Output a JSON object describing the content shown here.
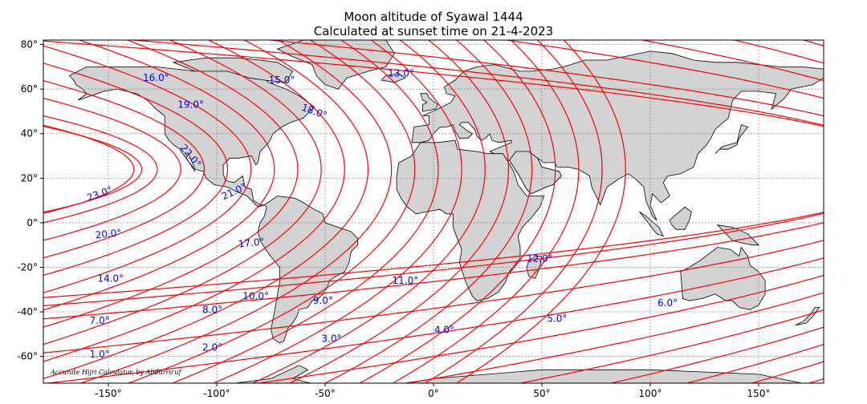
{
  "title": "Moon altitude of Syawal 1444",
  "subtitle": "Calculated at sunset time on 21-4-2023",
  "credit": "Accurate Hijri Calculator, by Abdurro'uf",
  "colors": {
    "contour": "#ff0000",
    "label": "#0000ff",
    "land": "#d3d3d3",
    "grid": "#808080"
  },
  "chart_data": {
    "type": "contour-map",
    "projection": "PlateCarree",
    "xlim": [
      -180,
      180
    ],
    "ylim": [
      -72,
      82
    ],
    "grid": true,
    "xticks": [
      {
        "value": -150,
        "label": "-150°"
      },
      {
        "value": -100,
        "label": "-100°"
      },
      {
        "value": -50,
        "label": "-50°"
      },
      {
        "value": 0,
        "label": "0°"
      },
      {
        "value": 50,
        "label": "50°"
      },
      {
        "value": 100,
        "label": "100°"
      },
      {
        "value": 150,
        "label": "150°"
      }
    ],
    "yticks": [
      {
        "value": 80,
        "label": "80°"
      },
      {
        "value": 60,
        "label": "60°"
      },
      {
        "value": 40,
        "label": "40°"
      },
      {
        "value": 20,
        "label": "20°"
      },
      {
        "value": 0,
        "label": "0°"
      },
      {
        "value": -20,
        "label": "-20°"
      },
      {
        "value": -40,
        "label": "-40°"
      },
      {
        "value": -60,
        "label": "-60°"
      }
    ],
    "contour_center": {
      "lon": -140,
      "lat": 24
    },
    "contour_levels": [
      {
        "level": 1,
        "r": 127
      },
      {
        "level": 2,
        "r": 121
      },
      {
        "level": 3,
        "r": 115
      },
      {
        "level": 4,
        "r": 109
      },
      {
        "level": 5,
        "r": 103
      },
      {
        "level": 6,
        "r": 97
      },
      {
        "level": 7,
        "r": 91
      },
      {
        "level": 8,
        "r": 85
      },
      {
        "level": 9,
        "r": 79
      },
      {
        "level": 10,
        "r": 73
      },
      {
        "level": 11,
        "r": 67
      },
      {
        "level": 12,
        "r": 61
      },
      {
        "level": 13,
        "r": 55
      },
      {
        "level": 14,
        "r": 49
      },
      {
        "level": 15,
        "r": 43
      },
      {
        "level": 16,
        "r": 37
      },
      {
        "level": 17,
        "r": 31
      },
      {
        "level": 18,
        "r": 25
      },
      {
        "level": 19,
        "r": 19
      },
      {
        "level": 20,
        "r": 13
      },
      {
        "level": 21,
        "r": 7
      },
      {
        "level": 22,
        "r": 3
      },
      {
        "level": 23,
        "r": 1
      }
    ],
    "contour_labels": [
      {
        "text": "16.0°",
        "lon": -128,
        "lat": 65,
        "angle": 0
      },
      {
        "text": "15.0°",
        "lon": -70,
        "lat": 64,
        "angle": 0
      },
      {
        "text": "13.0°",
        "lon": -15,
        "lat": 67,
        "angle": 0
      },
      {
        "text": "19.0°",
        "lon": -112,
        "lat": 53,
        "angle": 0
      },
      {
        "text": "18.0°",
        "lon": -55,
        "lat": 50,
        "angle": 20
      },
      {
        "text": "22.0°",
        "lon": -112,
        "lat": 30,
        "angle": 50
      },
      {
        "text": "23.0°",
        "lon": -154,
        "lat": 13,
        "angle": -20
      },
      {
        "text": "21.0°",
        "lon": -92,
        "lat": 14,
        "angle": -25
      },
      {
        "text": "20.0°",
        "lon": -150,
        "lat": -5,
        "angle": -6
      },
      {
        "text": "17.0°",
        "lon": -84,
        "lat": -9,
        "angle": -6
      },
      {
        "text": "12.0°",
        "lon": 49,
        "lat": -16,
        "angle": 0
      },
      {
        "text": "14.0°",
        "lon": -149,
        "lat": -25,
        "angle": 0
      },
      {
        "text": "11.0°",
        "lon": -13,
        "lat": -26,
        "angle": 0
      },
      {
        "text": "10.0°",
        "lon": -82,
        "lat": -33,
        "angle": 0
      },
      {
        "text": "9.0°",
        "lon": -51,
        "lat": -35,
        "angle": 0
      },
      {
        "text": "8.0°",
        "lon": -102,
        "lat": -39,
        "angle": 0
      },
      {
        "text": "6.0°",
        "lon": 108,
        "lat": -36,
        "angle": 0
      },
      {
        "text": "7.0°",
        "lon": -154,
        "lat": -44,
        "angle": 0
      },
      {
        "text": "5.0°",
        "lon": 57,
        "lat": -43,
        "angle": 0
      },
      {
        "text": "4.0°",
        "lon": 5,
        "lat": -48,
        "angle": 0
      },
      {
        "text": "3.0°",
        "lon": -47,
        "lat": -52,
        "angle": 0
      },
      {
        "text": "2.0°",
        "lon": -102,
        "lat": -56,
        "angle": 0
      },
      {
        "text": "1.0°",
        "lon": -154,
        "lat": -59,
        "angle": 0
      }
    ]
  }
}
